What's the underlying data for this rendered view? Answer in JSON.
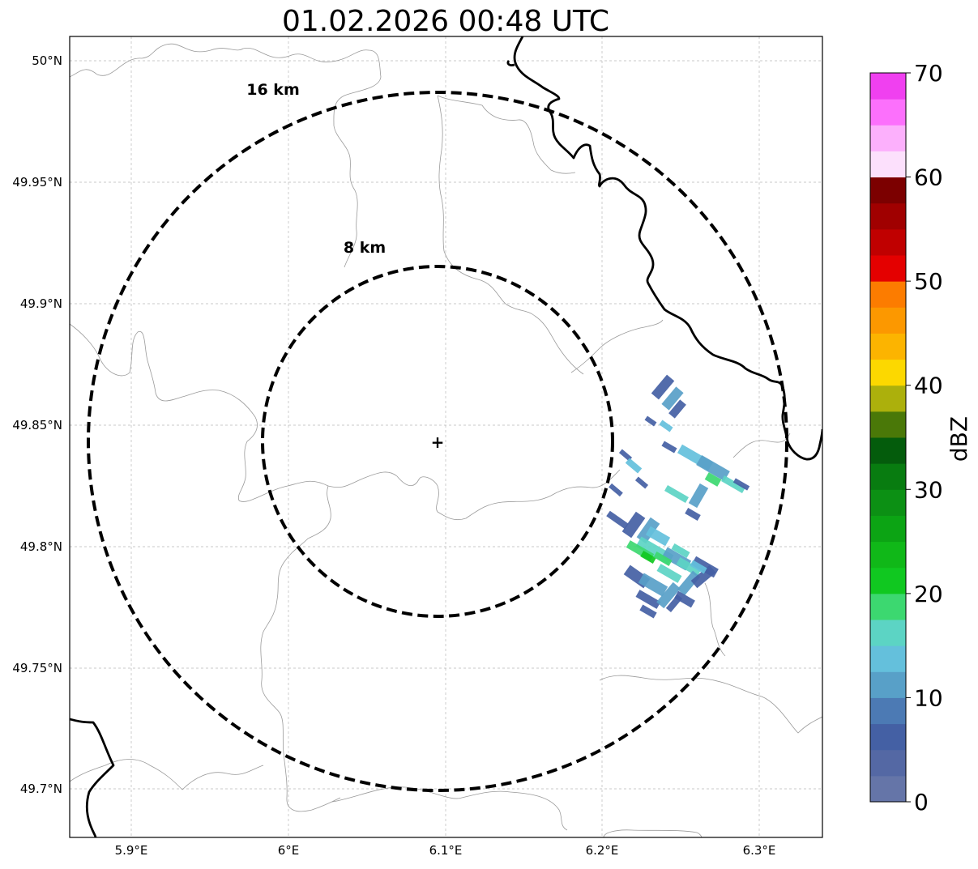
{
  "title": "01.02.2026 00:48 UTC",
  "map": {
    "x_ticks": [
      "5.9°E",
      "6°E",
      "6.1°E",
      "6.2°E",
      "6.3°E"
    ],
    "y_ticks": [
      "50°N",
      "49.95°N",
      "49.9°N",
      "49.85°N",
      "49.8°N",
      "49.75°N",
      "49.7°N"
    ],
    "range_rings": [
      {
        "label": "16 km",
        "radius_km": 16
      },
      {
        "label": "8 km",
        "radius_km": 8
      }
    ],
    "radar_site_symbol": "+",
    "grid": true
  },
  "colorbar": {
    "label": "dBZ",
    "ticks": [
      "0",
      "10",
      "20",
      "30",
      "40",
      "50",
      "60",
      "70"
    ],
    "range": [
      0,
      70
    ],
    "colors": [
      "#6575a8",
      "#5468a4",
      "#4460a4",
      "#4c7ab4",
      "#58a0c8",
      "#64c0dc",
      "#5cd4c4",
      "#3cd870",
      "#10c820",
      "#10b818",
      "#0ca414",
      "#0c9014",
      "#087c10",
      "#045c0c",
      "#4a7808",
      "#acb00c",
      "#fcd800",
      "#fcb400",
      "#fc9800",
      "#fc7c00",
      "#e40000",
      "#c00000",
      "#a00000",
      "#7c0000",
      "#fce0fc",
      "#fcb0fc",
      "#fc70fc",
      "#f040f0"
    ]
  },
  "echo_colors": {
    "dark_blue": "#4460a4",
    "mid_blue": "#58a0c8",
    "light_blue": "#64c0dc",
    "teal": "#5cd4c4",
    "green": "#3cd870",
    "bright_green": "#10c820"
  }
}
